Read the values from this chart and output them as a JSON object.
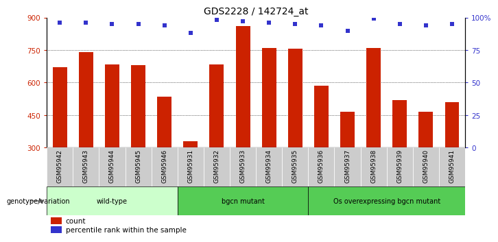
{
  "title": "GDS2228 / 142724_at",
  "samples": [
    "GSM95942",
    "GSM95943",
    "GSM95944",
    "GSM95945",
    "GSM95946",
    "GSM95931",
    "GSM95932",
    "GSM95933",
    "GSM95934",
    "GSM95935",
    "GSM95936",
    "GSM95937",
    "GSM95938",
    "GSM95939",
    "GSM95940",
    "GSM95941"
  ],
  "bar_values": [
    670,
    740,
    685,
    680,
    535,
    330,
    685,
    860,
    760,
    755,
    585,
    465,
    760,
    520,
    465,
    510
  ],
  "percentile_values": [
    96,
    96,
    95,
    95,
    94,
    88,
    98,
    97,
    96,
    95,
    94,
    90,
    99,
    95,
    94,
    95
  ],
  "bar_color": "#cc2200",
  "percentile_color": "#3333cc",
  "ylim_left": [
    300,
    900
  ],
  "ylim_right": [
    0,
    100
  ],
  "yticks_left": [
    300,
    450,
    600,
    750,
    900
  ],
  "yticks_right": [
    0,
    25,
    50,
    75,
    100
  ],
  "ytick_labels_right": [
    "0",
    "25",
    "50",
    "75",
    "100%"
  ],
  "grid_values": [
    450,
    600,
    750
  ],
  "groups": [
    {
      "label": "wild-type",
      "start": 0,
      "end": 5,
      "color": "#ccffcc"
    },
    {
      "label": "bgcn mutant",
      "start": 5,
      "end": 10,
      "color": "#44cc44"
    },
    {
      "label": "Os overexpressing bgcn mutant",
      "start": 10,
      "end": 16,
      "color": "#44cc44"
    }
  ],
  "group_label": "genotype/variation",
  "legend_count_label": "count",
  "legend_percentile_label": "percentile rank within the sample",
  "tick_label_bg": "#cccccc",
  "title_fontsize": 10,
  "bar_width": 0.55
}
